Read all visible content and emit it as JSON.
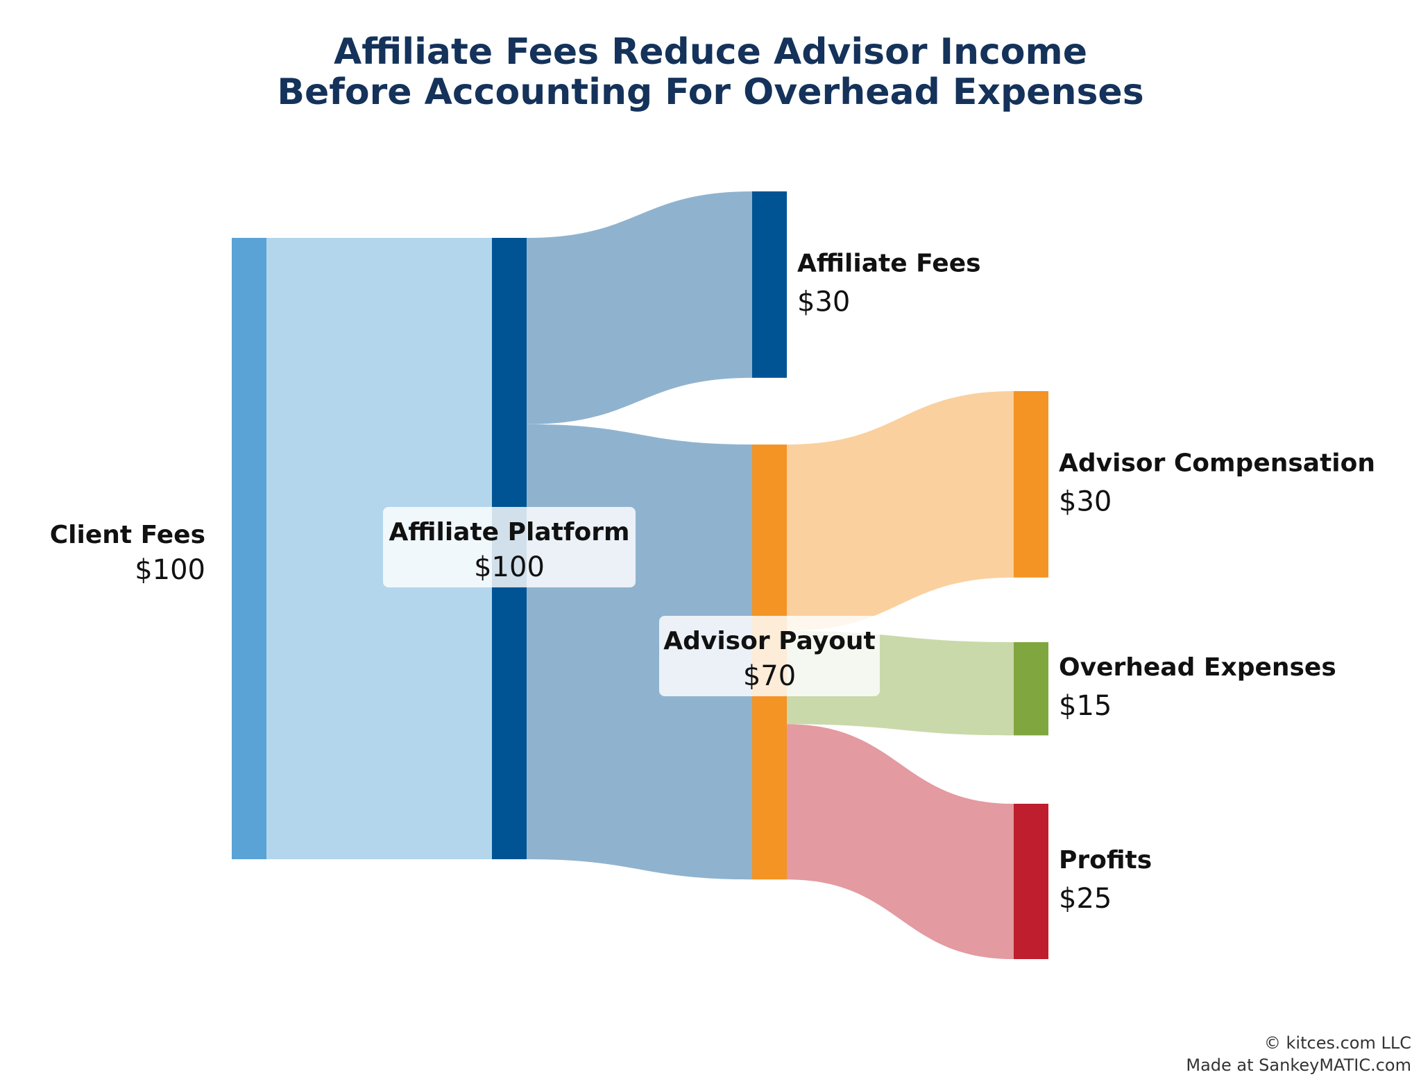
{
  "title": {
    "line1": "Affiliate Fees Reduce Advisor Income",
    "line2": "Before Accounting For Overhead Expenses"
  },
  "credits": {
    "line1": "© kitces.com LLC",
    "line2": "Made at SankeyMATIC.com"
  },
  "chart_data": {
    "type": "sankey",
    "nodes": [
      {
        "id": "client_fees",
        "name": "Client Fees",
        "value": 100,
        "value_label": "$100",
        "color": "#5aa3d6",
        "label_side": "left"
      },
      {
        "id": "affiliate_platform",
        "name": "Affiliate Platform",
        "value": 100,
        "value_label": "$100",
        "color": "#005493",
        "label_side": "center-boxed"
      },
      {
        "id": "affiliate_fees",
        "name": "Affiliate Fees",
        "value": 30,
        "value_label": "$30",
        "color": "#005493",
        "label_side": "right"
      },
      {
        "id": "advisor_payout",
        "name": "Advisor Payout",
        "value": 70,
        "value_label": "$70",
        "color": "#f39424",
        "label_side": "center-boxed"
      },
      {
        "id": "advisor_compensation",
        "name": "Advisor Compensation",
        "value": 30,
        "value_label": "$30",
        "color": "#f39424",
        "label_side": "right"
      },
      {
        "id": "overhead_expenses",
        "name": "Overhead Expenses",
        "value": 15,
        "value_label": "$15",
        "color": "#80a63f",
        "label_side": "right"
      },
      {
        "id": "profits",
        "name": "Profits",
        "value": 25,
        "value_label": "$25",
        "color": "#be1e2d",
        "label_side": "right"
      }
    ],
    "links": [
      {
        "source": "client_fees",
        "target": "affiliate_platform",
        "value": 100,
        "color": "#b3d6ec"
      },
      {
        "source": "affiliate_platform",
        "target": "affiliate_fees",
        "value": 30,
        "color": "#8fb3cf"
      },
      {
        "source": "affiliate_platform",
        "target": "advisor_payout",
        "value": 70,
        "color": "#8fb3cf"
      },
      {
        "source": "advisor_payout",
        "target": "advisor_compensation",
        "value": 30,
        "color": "#fad09f"
      },
      {
        "source": "advisor_payout",
        "target": "overhead_expenses",
        "value": 15,
        "color": "#c9d9a9"
      },
      {
        "source": "advisor_payout",
        "target": "profits",
        "value": 25,
        "color": "#e39aa0"
      }
    ]
  }
}
